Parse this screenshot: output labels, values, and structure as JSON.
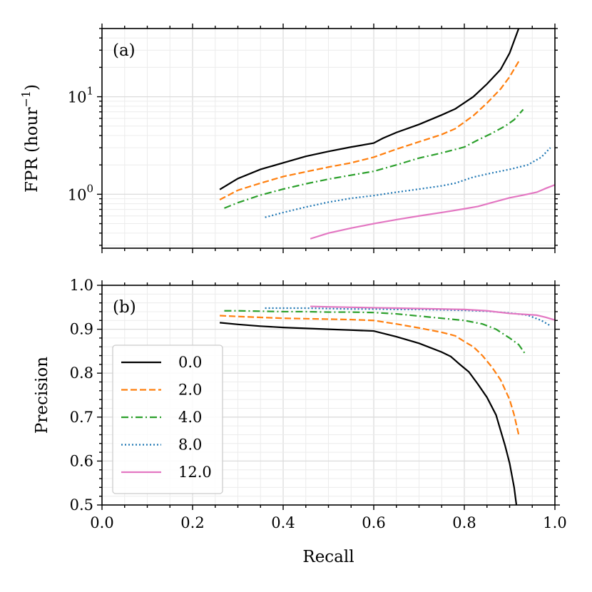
{
  "chart_data": [
    {
      "type": "line",
      "panel_label": "(a)",
      "title": "",
      "xlabel": "",
      "ylabel": "FPR (hour",
      "ylabel_sup": "−1",
      "ylabel_close": ")",
      "yscale": "log",
      "xlim": [
        0.0,
        1.0
      ],
      "ylim": [
        0.28,
        50
      ],
      "ytick_labels": [
        {
          "value": 1,
          "base": "10",
          "exp": "0"
        },
        {
          "value": 10,
          "base": "10",
          "exp": "1"
        }
      ],
      "series": [
        {
          "name": "0.0",
          "color": "#000000",
          "dash": "solid",
          "x": [
            0.26,
            0.3,
            0.35,
            0.4,
            0.45,
            0.5,
            0.55,
            0.6,
            0.62,
            0.65,
            0.7,
            0.75,
            0.78,
            0.82,
            0.85,
            0.88,
            0.9,
            0.92
          ],
          "y": [
            1.12,
            1.45,
            1.8,
            2.1,
            2.45,
            2.75,
            3.05,
            3.35,
            3.75,
            4.3,
            5.2,
            6.5,
            7.5,
            10.0,
            13.5,
            19.0,
            28.0,
            50.0
          ]
        },
        {
          "name": "2.0",
          "color": "#ff7f0e",
          "dash": "dashed",
          "x": [
            0.26,
            0.3,
            0.35,
            0.4,
            0.45,
            0.5,
            0.55,
            0.6,
            0.65,
            0.7,
            0.75,
            0.78,
            0.82,
            0.85,
            0.88,
            0.9,
            0.92
          ],
          "y": [
            0.88,
            1.1,
            1.3,
            1.52,
            1.7,
            1.9,
            2.1,
            2.4,
            2.9,
            3.45,
            4.1,
            4.7,
            6.4,
            8.6,
            12.0,
            16.0,
            23.0
          ]
        },
        {
          "name": "4.0",
          "color": "#2ca02c",
          "dash": "dashdot",
          "x": [
            0.27,
            0.3,
            0.35,
            0.4,
            0.45,
            0.5,
            0.55,
            0.6,
            0.65,
            0.7,
            0.75,
            0.8,
            0.83,
            0.86,
            0.89,
            0.91,
            0.93
          ],
          "y": [
            0.72,
            0.82,
            0.98,
            1.13,
            1.28,
            1.43,
            1.57,
            1.72,
            2.0,
            2.35,
            2.65,
            3.05,
            3.6,
            4.2,
            5.0,
            5.8,
            7.4
          ]
        },
        {
          "name": "8.0",
          "color": "#1f77b4",
          "dash": "dotted",
          "x": [
            0.36,
            0.4,
            0.45,
            0.5,
            0.55,
            0.6,
            0.65,
            0.7,
            0.75,
            0.78,
            0.82,
            0.86,
            0.9,
            0.94,
            0.97,
            0.99
          ],
          "y": [
            0.58,
            0.65,
            0.74,
            0.83,
            0.91,
            0.97,
            1.05,
            1.13,
            1.22,
            1.3,
            1.5,
            1.65,
            1.8,
            2.0,
            2.4,
            3.0
          ]
        },
        {
          "name": "12.0",
          "color": "#e377c2",
          "dash": "solid",
          "x": [
            0.46,
            0.5,
            0.55,
            0.6,
            0.65,
            0.7,
            0.75,
            0.8,
            0.83,
            0.86,
            0.9,
            0.93,
            0.96,
            0.98,
            1.0
          ],
          "y": [
            0.35,
            0.4,
            0.45,
            0.5,
            0.55,
            0.6,
            0.65,
            0.71,
            0.75,
            0.82,
            0.92,
            0.98,
            1.05,
            1.15,
            1.25
          ]
        }
      ]
    },
    {
      "type": "line",
      "panel_label": "(b)",
      "title": "",
      "xlabel": "Recall",
      "ylabel": "Precision",
      "yscale": "linear",
      "xlim": [
        0.0,
        1.0
      ],
      "ylim": [
        0.5,
        1.0
      ],
      "x_ticks": [
        0.0,
        0.2,
        0.4,
        0.6,
        0.8,
        1.0
      ],
      "x_tick_labels": [
        "0.0",
        "0.2",
        "0.4",
        "0.6",
        "0.8",
        "1.0"
      ],
      "y_ticks": [
        0.5,
        0.6,
        0.7,
        0.8,
        0.9,
        1.0
      ],
      "y_tick_labels": [
        "0.5",
        "0.6",
        "0.7",
        "0.8",
        "0.9",
        "1.0"
      ],
      "legend_position": "bottom-left",
      "series": [
        {
          "name": "0.0",
          "color": "#000000",
          "dash": "solid",
          "x": [
            0.26,
            0.3,
            0.35,
            0.4,
            0.45,
            0.5,
            0.55,
            0.6,
            0.65,
            0.7,
            0.75,
            0.77,
            0.79,
            0.81,
            0.83,
            0.85,
            0.87,
            0.88,
            0.89,
            0.9,
            0.91,
            0.915
          ],
          "y": [
            0.915,
            0.911,
            0.907,
            0.904,
            0.902,
            0.9,
            0.898,
            0.896,
            0.883,
            0.868,
            0.848,
            0.838,
            0.82,
            0.803,
            0.775,
            0.745,
            0.705,
            0.67,
            0.635,
            0.595,
            0.54,
            0.5
          ]
        },
        {
          "name": "2.0",
          "color": "#ff7f0e",
          "dash": "dashed",
          "x": [
            0.26,
            0.3,
            0.35,
            0.4,
            0.45,
            0.5,
            0.55,
            0.6,
            0.65,
            0.7,
            0.75,
            0.78,
            0.8,
            0.82,
            0.84,
            0.86,
            0.88,
            0.9,
            0.91,
            0.92
          ],
          "y": [
            0.931,
            0.929,
            0.927,
            0.925,
            0.924,
            0.923,
            0.922,
            0.92,
            0.912,
            0.903,
            0.893,
            0.885,
            0.872,
            0.86,
            0.84,
            0.815,
            0.785,
            0.74,
            0.705,
            0.66
          ]
        },
        {
          "name": "4.0",
          "color": "#2ca02c",
          "dash": "dashdot",
          "x": [
            0.27,
            0.3,
            0.35,
            0.4,
            0.45,
            0.5,
            0.55,
            0.6,
            0.65,
            0.7,
            0.75,
            0.8,
            0.84,
            0.87,
            0.9,
            0.92,
            0.935
          ],
          "y": [
            0.942,
            0.942,
            0.941,
            0.94,
            0.94,
            0.939,
            0.939,
            0.938,
            0.935,
            0.93,
            0.925,
            0.92,
            0.912,
            0.9,
            0.88,
            0.865,
            0.843
          ]
        },
        {
          "name": "8.0",
          "color": "#1f77b4",
          "dash": "dotted",
          "x": [
            0.36,
            0.4,
            0.45,
            0.5,
            0.55,
            0.6,
            0.65,
            0.7,
            0.75,
            0.8,
            0.85,
            0.9,
            0.94,
            0.97,
            0.99
          ],
          "y": [
            0.948,
            0.948,
            0.948,
            0.947,
            0.946,
            0.946,
            0.945,
            0.945,
            0.944,
            0.943,
            0.941,
            0.937,
            0.932,
            0.92,
            0.908
          ]
        },
        {
          "name": "12.0",
          "color": "#e377c2",
          "dash": "solid",
          "x": [
            0.46,
            0.5,
            0.55,
            0.6,
            0.65,
            0.7,
            0.75,
            0.8,
            0.85,
            0.9,
            0.93,
            0.96,
            0.98,
            1.0
          ],
          "y": [
            0.952,
            0.951,
            0.95,
            0.949,
            0.948,
            0.947,
            0.946,
            0.945,
            0.942,
            0.936,
            0.934,
            0.932,
            0.927,
            0.921
          ]
        }
      ]
    }
  ]
}
